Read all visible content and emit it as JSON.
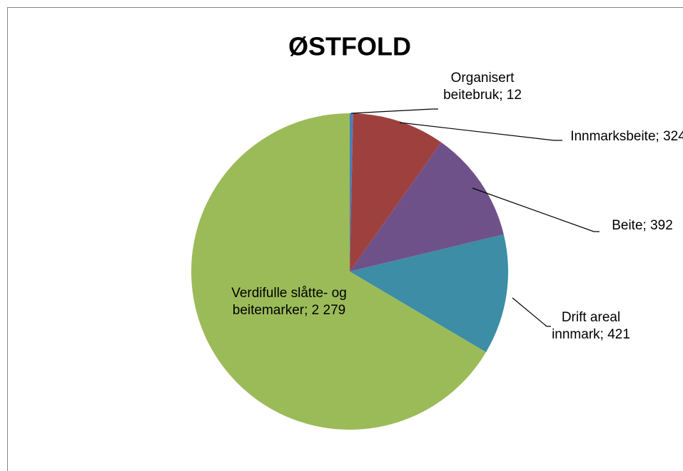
{
  "chart_data": {
    "type": "pie",
    "title": "ØSTFOLD",
    "categories": [
      "Organisert beitebruk",
      "Innmarksbeite",
      "Beite",
      "Drift areal innmark",
      "Verdifulle slåtte- og beitemarker"
    ],
    "values": [
      12,
      324,
      392,
      421,
      2279
    ],
    "value_labels": [
      "12",
      "324",
      "392",
      "421",
      "2 279"
    ],
    "label_separator": "; ",
    "colors": [
      "#4a7ebb",
      "#9e413e",
      "#6f5189",
      "#3c8da5",
      "#9bbb59"
    ]
  }
}
